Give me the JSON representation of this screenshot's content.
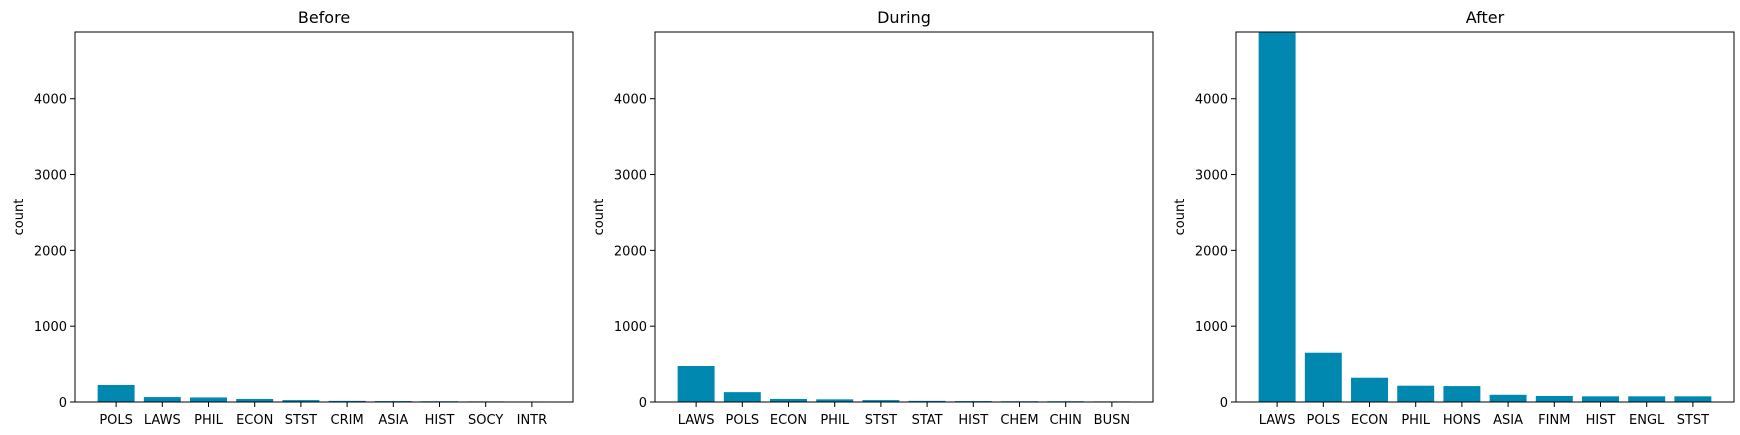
{
  "chart_data": [
    {
      "type": "bar",
      "title": "Before",
      "ylabel": "count",
      "xlabel": "",
      "ylim": [
        0,
        4880
      ],
      "yticks": [
        0,
        1000,
        2000,
        3000,
        4000
      ],
      "categories": [
        "POLS",
        "LAWS",
        "PHIL",
        "ECON",
        "STST",
        "CRIM",
        "ASIA",
        "HIST",
        "SOCY",
        "INTR"
      ],
      "values": [
        225,
        65,
        60,
        40,
        25,
        15,
        12,
        10,
        8,
        7
      ],
      "color": "#0088b0"
    },
    {
      "type": "bar",
      "title": "During",
      "ylabel": "count",
      "xlabel": "",
      "ylim": [
        0,
        4880
      ],
      "yticks": [
        0,
        1000,
        2000,
        3000,
        4000
      ],
      "categories": [
        "LAWS",
        "POLS",
        "ECON",
        "PHIL",
        "STST",
        "STAT",
        "HIST",
        "CHEM",
        "CHIN",
        "BUSN"
      ],
      "values": [
        475,
        130,
        40,
        35,
        25,
        15,
        12,
        10,
        10,
        8
      ],
      "color": "#0088b0"
    },
    {
      "type": "bar",
      "title": "After",
      "ylabel": "count",
      "xlabel": "",
      "ylim": [
        0,
        4880
      ],
      "yticks": [
        0,
        1000,
        2000,
        3000,
        4000
      ],
      "categories": [
        "LAWS",
        "POLS",
        "ECON",
        "PHIL",
        "HONS",
        "ASIA",
        "FINM",
        "HIST",
        "ENGL",
        "STST"
      ],
      "values": [
        4880,
        650,
        320,
        215,
        210,
        95,
        80,
        75,
        75,
        75
      ],
      "color": "#0088b0"
    }
  ]
}
